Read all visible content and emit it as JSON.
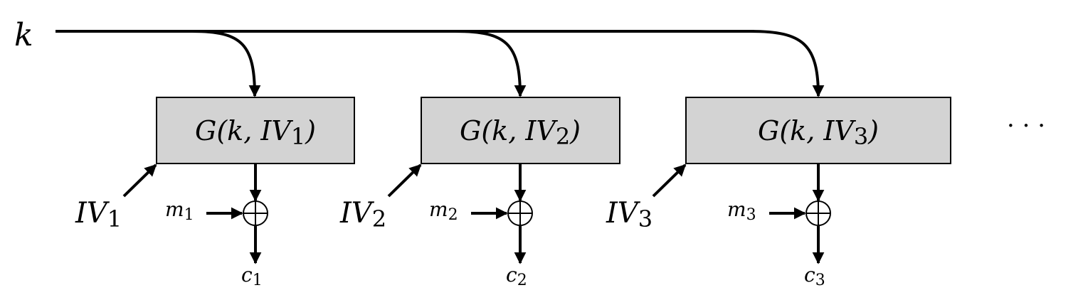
{
  "key_label": "k",
  "blocks": [
    {
      "gen": {
        "pre": "G(k, ",
        "iv": "IV",
        "sub": "1",
        "post": ")"
      },
      "iv": {
        "base": "IV",
        "sub": "1"
      },
      "msg": {
        "base": "m",
        "sub": "1"
      },
      "ct": {
        "base": "c",
        "sub": "1"
      }
    },
    {
      "gen": {
        "pre": "G(k, ",
        "iv": "IV",
        "sub": "2",
        "post": ")"
      },
      "iv": {
        "base": "IV",
        "sub": "2"
      },
      "msg": {
        "base": "m",
        "sub": "2"
      },
      "ct": {
        "base": "c",
        "sub": "2"
      }
    },
    {
      "gen": {
        "pre": "G(k, ",
        "iv": "IV",
        "sub": "3",
        "post": ")"
      },
      "iv": {
        "base": "IV",
        "sub": "3"
      },
      "msg": {
        "base": "m",
        "sub": "3"
      },
      "ct": {
        "base": "c",
        "sub": "3"
      }
    }
  ],
  "ellipsis": "· · ·",
  "colors": {
    "box_fill": "#d3d3d3",
    "stroke": "#000000"
  }
}
